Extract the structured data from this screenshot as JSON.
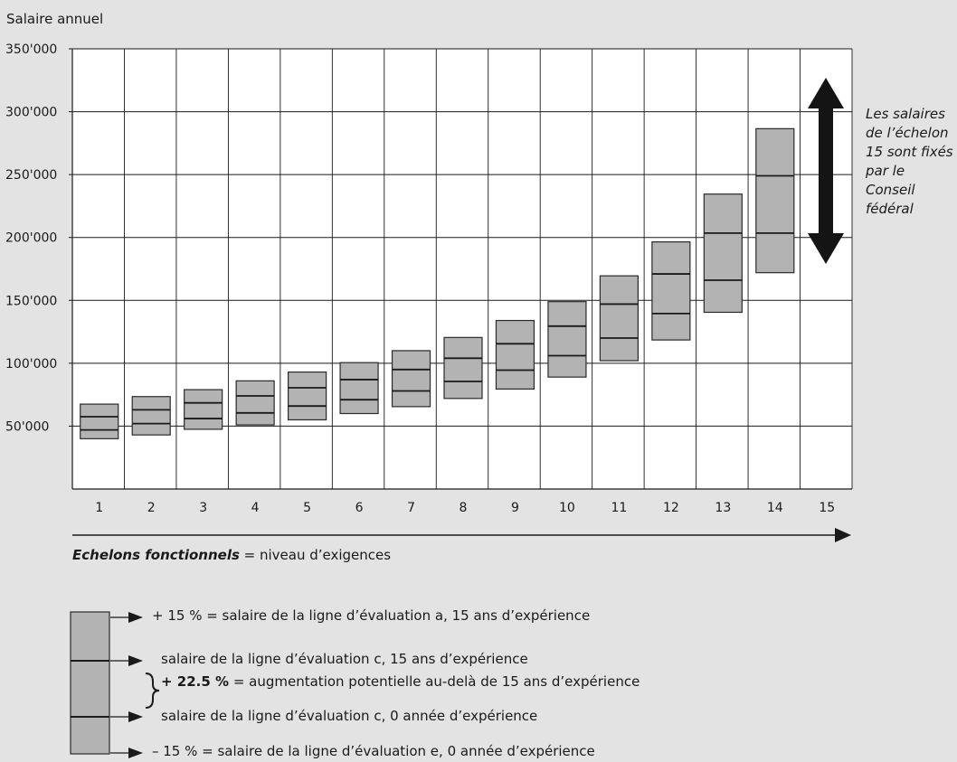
{
  "chart_data": {
    "type": "box",
    "title": "",
    "ylabel": "Salaire annuel",
    "ylim": [
      0,
      350000
    ],
    "yticks": [
      50000,
      100000,
      150000,
      200000,
      250000,
      300000,
      350000
    ],
    "ytick_labels": [
      "50'000",
      "100'000",
      "150'000",
      "200'000",
      "250'000",
      "300'000",
      "350'000"
    ],
    "categories": [
      "1",
      "2",
      "3",
      "4",
      "5",
      "6",
      "7",
      "8",
      "9",
      "10",
      "11",
      "12",
      "13",
      "14",
      "15"
    ],
    "xlabel_bold": "Echelons fonctionnels",
    "xlabel_rest": " = niveau d’exigences",
    "boxes": [
      {
        "echelon": 1,
        "min": 40000,
        "c0": 47000,
        "c15": 57500,
        "max": 67500
      },
      {
        "echelon": 2,
        "min": 43000,
        "c0": 52000,
        "c15": 63000,
        "max": 73500
      },
      {
        "echelon": 3,
        "min": 47500,
        "c0": 56000,
        "c15": 68500,
        "max": 79000
      },
      {
        "echelon": 4,
        "min": 51000,
        "c0": 60500,
        "c15": 74000,
        "max": 86000
      },
      {
        "echelon": 5,
        "min": 55000,
        "c0": 66000,
        "c15": 80500,
        "max": 93000
      },
      {
        "echelon": 6,
        "min": 60000,
        "c0": 71000,
        "c15": 87000,
        "max": 100500
      },
      {
        "echelon": 7,
        "min": 65500,
        "c0": 78000,
        "c15": 95000,
        "max": 110000
      },
      {
        "echelon": 8,
        "min": 72000,
        "c0": 85500,
        "c15": 104000,
        "max": 120500
      },
      {
        "echelon": 9,
        "min": 79500,
        "c0": 94500,
        "c15": 115500,
        "max": 134000
      },
      {
        "echelon": 10,
        "min": 89000,
        "c0": 106000,
        "c15": 129500,
        "max": 149000
      },
      {
        "echelon": 11,
        "min": 102000,
        "c0": 120000,
        "c15": 147000,
        "max": 169500
      },
      {
        "echelon": 12,
        "min": 118500,
        "c0": 139500,
        "c15": 171000,
        "max": 196500
      },
      {
        "echelon": 13,
        "min": 140500,
        "c0": 166000,
        "c15": 203500,
        "max": 234500
      },
      {
        "echelon": 14,
        "min": 172000,
        "c0": 203500,
        "c15": 249000,
        "max": 286500
      }
    ],
    "grid": true,
    "box_fill": "#b3b3b3"
  },
  "note": {
    "text": "Les salaires de l’échelon 15 sont fixés par le Conseil fédéral"
  },
  "legend": {
    "top": "+ 15 % = salaire de la ligne d’évaluation a, 15 ans d’expérience",
    "c15": "salaire de la ligne d’évaluation c, 15 ans d’expérience",
    "increase_bold": "+ 22.5 %",
    "increase_rest": " = augmentation potentielle au-delà de 15 ans d’expérience",
    "c0": "salaire de la ligne d’évaluation c, 0 année d’expérience",
    "bottom": "– 15 % = salaire de la ligne d’évaluation e, 0 année d’expérience"
  }
}
